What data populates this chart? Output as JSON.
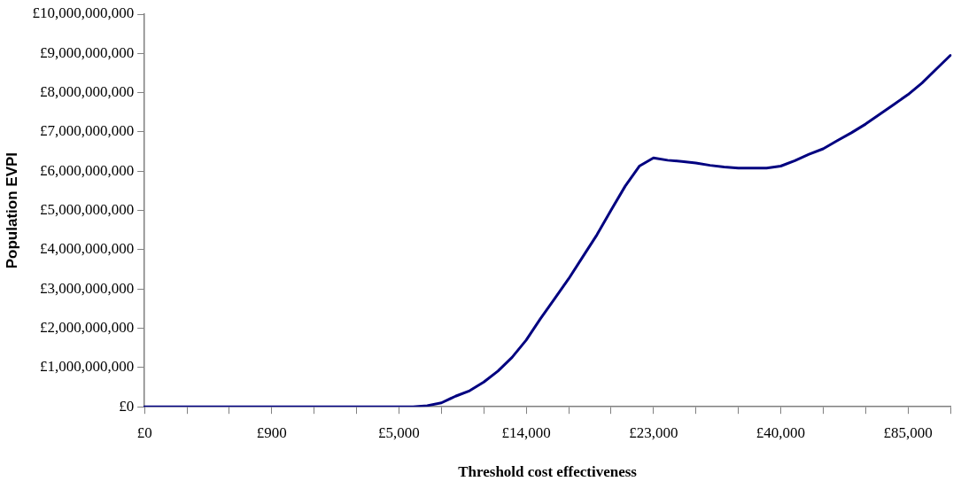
{
  "chart_data": {
    "type": "line",
    "xlabel": "Threshold cost effectiveness",
    "ylabel": "Population EVPI",
    "categories": [
      "£0",
      null,
      null,
      null,
      null,
      null,
      null,
      null,
      null,
      "£900",
      null,
      null,
      null,
      null,
      null,
      null,
      null,
      null,
      "£5,000",
      null,
      null,
      null,
      null,
      null,
      null,
      null,
      null,
      "£14,000",
      null,
      null,
      null,
      null,
      null,
      null,
      null,
      null,
      "£23,000",
      null,
      null,
      null,
      null,
      null,
      null,
      null,
      null,
      "£40,000",
      null,
      null,
      null,
      null,
      null,
      null,
      null,
      null,
      "£85,000",
      null,
      null,
      null
    ],
    "series": [
      {
        "color": "#000080",
        "values": [
          0,
          0,
          0,
          0,
          0,
          0,
          0,
          0,
          0,
          0,
          0,
          0,
          0,
          0,
          0,
          0,
          0,
          0,
          0,
          0,
          30000000,
          100000000,
          270000000,
          410000000,
          630000000,
          910000000,
          1260000000,
          1700000000,
          2240000000,
          2750000000,
          3260000000,
          3820000000,
          4380000000,
          5010000000,
          5620000000,
          6130000000,
          6340000000,
          6280000000,
          6250000000,
          6210000000,
          6150000000,
          6110000000,
          6080000000,
          6080000000,
          6080000000,
          6130000000,
          6270000000,
          6430000000,
          6570000000,
          6780000000,
          6980000000,
          7200000000,
          7450000000,
          7700000000,
          7950000000,
          8250000000,
          8600000000,
          8950000000
        ]
      }
    ],
    "ylim": [
      0,
      10000000000
    ],
    "yticks": [
      {
        "value": 0,
        "label": "£0"
      },
      {
        "value": 1000000000,
        "label": "£1,000,000,000"
      },
      {
        "value": 2000000000,
        "label": "£2,000,000,000"
      },
      {
        "value": 3000000000,
        "label": "£3,000,000,000"
      },
      {
        "value": 4000000000,
        "label": "£4,000,000,000"
      },
      {
        "value": 5000000000,
        "label": "£5,000,000,000"
      },
      {
        "value": 6000000000,
        "label": "£6,000,000,000"
      },
      {
        "value": 7000000000,
        "label": "£7,000,000,000"
      },
      {
        "value": 8000000000,
        "label": "£8,000,000,000"
      },
      {
        "value": 9000000000,
        "label": "£9,000,000,000"
      },
      {
        "value": 10000000000,
        "label": "£10,000,000,000"
      }
    ],
    "grid": false,
    "legend": false,
    "marker": "none",
    "line_style": "solid"
  }
}
